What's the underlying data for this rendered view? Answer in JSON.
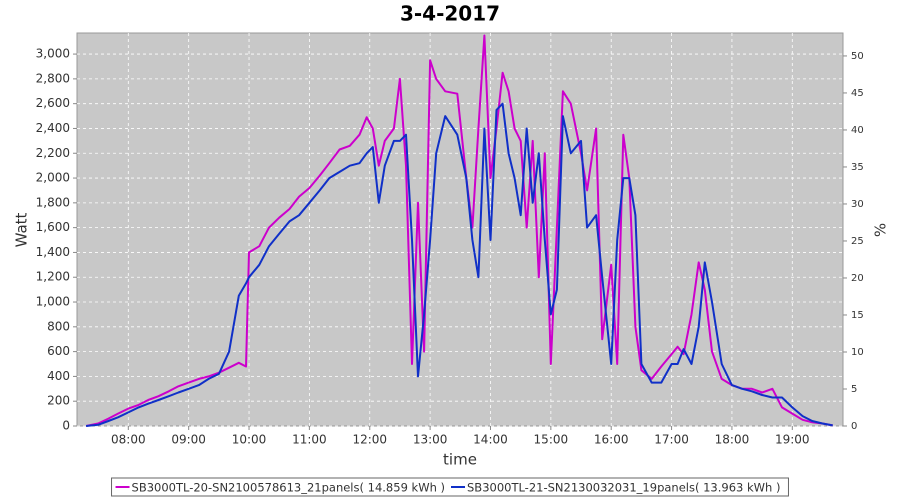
{
  "chart_data": {
    "type": "line",
    "title": "3-4-2017",
    "x_label": "time",
    "y_label": "Watt",
    "y2_label": "%",
    "x": [
      7.3,
      7.5,
      7.67,
      7.83,
      8,
      8.17,
      8.33,
      8.5,
      8.67,
      8.83,
      9,
      9.17,
      9.33,
      9.5,
      9.67,
      9.83,
      9.95,
      10,
      10.17,
      10.33,
      10.5,
      10.67,
      10.83,
      11,
      11.17,
      11.33,
      11.5,
      11.67,
      11.83,
      11.95,
      12.05,
      12.15,
      12.25,
      12.4,
      12.5,
      12.6,
      12.7,
      12.8,
      12.9,
      13,
      13.1,
      13.25,
      13.45,
      13.6,
      13.7,
      13.8,
      13.9,
      14,
      14.1,
      14.2,
      14.3,
      14.4,
      14.5,
      14.6,
      14.7,
      14.8,
      14.9,
      15,
      15.1,
      15.2,
      15.33,
      15.5,
      15.6,
      15.75,
      15.85,
      16,
      16.1,
      16.2,
      16.3,
      16.4,
      16.5,
      16.67,
      16.83,
      17,
      17.1,
      17.2,
      17.33,
      17.45,
      17.55,
      17.67,
      17.83,
      18,
      18.17,
      18.33,
      18.5,
      18.67,
      18.83,
      19,
      19.17,
      19.33,
      19.5,
      19.67
    ],
    "series": [
      {
        "name": "SB3000TL-20-SN2100578613_21panels( 14.859 kWh )",
        "color": "#cc00cc",
        "values": [
          0,
          20,
          60,
          100,
          140,
          170,
          210,
          240,
          280,
          320,
          350,
          380,
          400,
          430,
          470,
          510,
          480,
          1400,
          1450,
          1600,
          1680,
          1750,
          1850,
          1920,
          2020,
          2120,
          2230,
          2260,
          2350,
          2490,
          2400,
          2100,
          2300,
          2400,
          2800,
          2100,
          500,
          1800,
          600,
          2950,
          2800,
          2700,
          2680,
          2000,
          1600,
          2400,
          3150,
          2000,
          2400,
          2850,
          2700,
          2400,
          2300,
          1600,
          2300,
          1200,
          2200,
          500,
          1600,
          2700,
          2600,
          2200,
          1900,
          2400,
          700,
          1300,
          500,
          2350,
          2000,
          800,
          450,
          380,
          480,
          580,
          640,
          580,
          900,
          1320,
          1100,
          600,
          380,
          330,
          300,
          300,
          270,
          300,
          150,
          100,
          50,
          30,
          20,
          5
        ]
      },
      {
        "name": "SB3000TL-21-SN2130032031_19panels( 13.963 kWh )",
        "color": "#1030c8",
        "values": [
          0,
          10,
          40,
          70,
          110,
          150,
          180,
          210,
          240,
          270,
          300,
          330,
          380,
          420,
          600,
          1050,
          1150,
          1200,
          1300,
          1450,
          1550,
          1650,
          1700,
          1800,
          1900,
          2000,
          2050,
          2100,
          2120,
          2200,
          2250,
          1800,
          2100,
          2300,
          2300,
          2350,
          1500,
          400,
          900,
          1500,
          2200,
          2500,
          2350,
          2000,
          1500,
          1200,
          2400,
          1500,
          2550,
          2600,
          2200,
          2000,
          1700,
          2400,
          1800,
          2200,
          1500,
          900,
          1100,
          2500,
          2200,
          2300,
          1600,
          1700,
          1200,
          500,
          1500,
          2000,
          2000,
          1700,
          500,
          350,
          350,
          500,
          500,
          620,
          500,
          800,
          1320,
          1000,
          500,
          330,
          300,
          280,
          250,
          230,
          230,
          150,
          80,
          40,
          20,
          5
        ]
      }
    ],
    "xlim": [
      7.15,
      19.84
    ],
    "xticks": [
      {
        "value": 8,
        "label": "08:00"
      },
      {
        "value": 9,
        "label": "09:00"
      },
      {
        "value": 10,
        "label": "10:00"
      },
      {
        "value": 11,
        "label": "11:00"
      },
      {
        "value": 12,
        "label": "12:00"
      },
      {
        "value": 13,
        "label": "13:00"
      },
      {
        "value": 14,
        "label": "14:00"
      },
      {
        "value": 15,
        "label": "15:00"
      },
      {
        "value": 16,
        "label": "16:00"
      },
      {
        "value": 17,
        "label": "17:00"
      },
      {
        "value": 18,
        "label": "18:00"
      },
      {
        "value": 19,
        "label": "19:00"
      }
    ],
    "ylim": [
      0,
      3170
    ],
    "yticks": [
      0,
      200,
      400,
      600,
      800,
      {
        "value": 1000,
        "label": "1,000"
      },
      {
        "value": 1200,
        "label": "1,200"
      },
      {
        "value": 1400,
        "label": "1,400"
      },
      {
        "value": 1600,
        "label": "1,600"
      },
      {
        "value": 1800,
        "label": "1,800"
      },
      {
        "value": 2000,
        "label": "2,000"
      },
      {
        "value": 2200,
        "label": "2,200"
      },
      {
        "value": 2400,
        "label": "2,400"
      },
      {
        "value": 2600,
        "label": "2,600"
      },
      {
        "value": 2800,
        "label": "2,800"
      },
      {
        "value": 3000,
        "label": "3,000"
      }
    ],
    "y2lim": [
      0,
      53.1
    ],
    "y2ticks": [
      0,
      5,
      10,
      15,
      20,
      25,
      30,
      35,
      40,
      45,
      50
    ],
    "grid": true,
    "legend": "bottom"
  }
}
